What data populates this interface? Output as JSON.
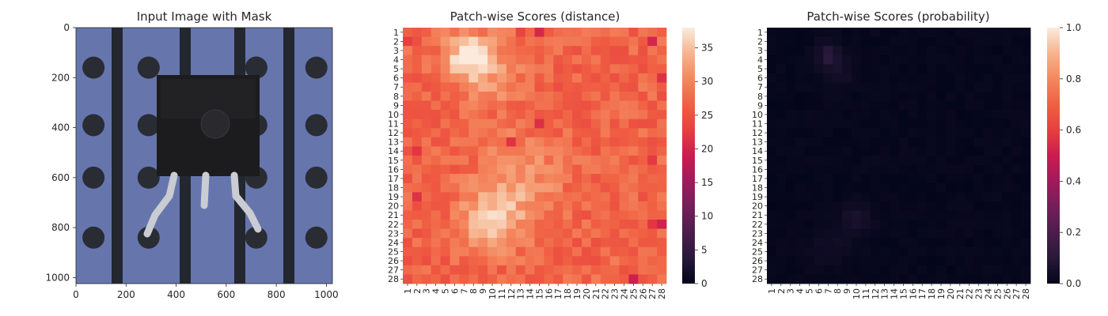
{
  "figure": {
    "layout": "1 row x 3 panels"
  },
  "image_panel": {
    "title": "Input Image with Mask",
    "description_icon": "pcb-image",
    "x_ticks": [
      "0",
      "200",
      "400",
      "600",
      "800",
      "1000"
    ],
    "y_ticks": [
      "0",
      "200",
      "400",
      "600",
      "800",
      "1000"
    ],
    "x_range": [
      0,
      1024
    ],
    "y_range": [
      0,
      1024
    ],
    "colors": {
      "board": "#6a7ab0",
      "strip": "#23272f",
      "hole": "#2a2c33",
      "component": "#1c1c1e",
      "leads": "#c9ccd2"
    }
  },
  "chart_data": [
    {
      "type": "heatmap",
      "title": "Patch-wise Scores (distance)",
      "xlabel": "",
      "ylabel": "",
      "x_labels": [
        "1",
        "2",
        "3",
        "4",
        "5",
        "6",
        "7",
        "8",
        "9",
        "10",
        "11",
        "12",
        "13",
        "14",
        "15",
        "16",
        "17",
        "18",
        "19",
        "20",
        "21",
        "22",
        "23",
        "24",
        "25",
        "26",
        "27",
        "28"
      ],
      "y_labels": [
        "1",
        "2",
        "3",
        "4",
        "5",
        "6",
        "7",
        "8",
        "9",
        "10",
        "11",
        "12",
        "13",
        "14",
        "15",
        "16",
        "17",
        "18",
        "19",
        "20",
        "21",
        "22",
        "23",
        "24",
        "25",
        "26",
        "27",
        "28"
      ],
      "colorbar": {
        "ticks": [
          "0",
          "5",
          "10",
          "15",
          "20",
          "25",
          "30",
          "35"
        ],
        "range": [
          0,
          38
        ],
        "colormap": "rocket"
      },
      "value_model": {
        "base": 27,
        "hotspots": [
          {
            "row": 3.5,
            "col": 7.5,
            "peak": 11,
            "spread": 1.6
          },
          {
            "row": 21.5,
            "col": 10,
            "peak": 9,
            "spread": 2.2
          },
          {
            "row": 17,
            "col": 13,
            "peak": 5,
            "spread": 3
          },
          {
            "row": 5.5,
            "col": 9.5,
            "peak": 5,
            "spread": 2.5
          }
        ],
        "low_spots": [
          {
            "row": 2,
            "col": 1,
            "depth": 5
          },
          {
            "row": 14,
            "col": 2,
            "depth": 6
          },
          {
            "row": 19,
            "col": 2,
            "depth": 5
          },
          {
            "row": 13,
            "col": 12,
            "depth": 6
          },
          {
            "row": 11,
            "col": 15,
            "depth": 5
          },
          {
            "row": 1,
            "col": 13,
            "depth": 4
          },
          {
            "row": 1,
            "col": 15,
            "depth": 5
          },
          {
            "row": 28,
            "col": 25,
            "depth": 7
          },
          {
            "row": 22,
            "col": 27,
            "depth": 6
          },
          {
            "row": 22,
            "col": 28,
            "depth": 6
          },
          {
            "row": 2,
            "col": 27,
            "depth": 5
          },
          {
            "row": 6,
            "col": 28,
            "depth": 5
          },
          {
            "row": 15,
            "col": 27,
            "depth": 5
          },
          {
            "row": 10,
            "col": 1,
            "depth": 4
          }
        ],
        "noise": 2.5
      }
    },
    {
      "type": "heatmap",
      "title": "Patch-wise Scores (probability)",
      "xlabel": "",
      "ylabel": "",
      "x_labels": [
        "1",
        "2",
        "3",
        "4",
        "5",
        "6",
        "7",
        "8",
        "9",
        "10",
        "11",
        "12",
        "13",
        "14",
        "15",
        "16",
        "17",
        "18",
        "19",
        "20",
        "21",
        "22",
        "23",
        "24",
        "25",
        "26",
        "27",
        "28"
      ],
      "y_labels": [
        "1",
        "2",
        "3",
        "4",
        "5",
        "6",
        "7",
        "8",
        "9",
        "10",
        "11",
        "12",
        "13",
        "14",
        "15",
        "16",
        "17",
        "18",
        "19",
        "20",
        "21",
        "22",
        "23",
        "24",
        "25",
        "26",
        "27",
        "28"
      ],
      "colorbar": {
        "ticks": [
          "0.0",
          "0.2",
          "0.4",
          "0.6",
          "0.8",
          "1.0"
        ],
        "range": [
          0,
          1
        ],
        "colormap": "rocket"
      },
      "value_model": {
        "base": 0.01,
        "hotspots": [
          {
            "row": 3.5,
            "col": 7,
            "peak": 0.09,
            "spread": 0.9
          },
          {
            "row": 5.5,
            "col": 8,
            "peak": 0.04,
            "spread": 1.2
          },
          {
            "row": 21.5,
            "col": 10,
            "peak": 0.05,
            "spread": 1.2
          },
          {
            "row": 24.5,
            "col": 7,
            "peak": 0.03,
            "spread": 1.5
          }
        ],
        "noise": 0.008
      }
    }
  ]
}
